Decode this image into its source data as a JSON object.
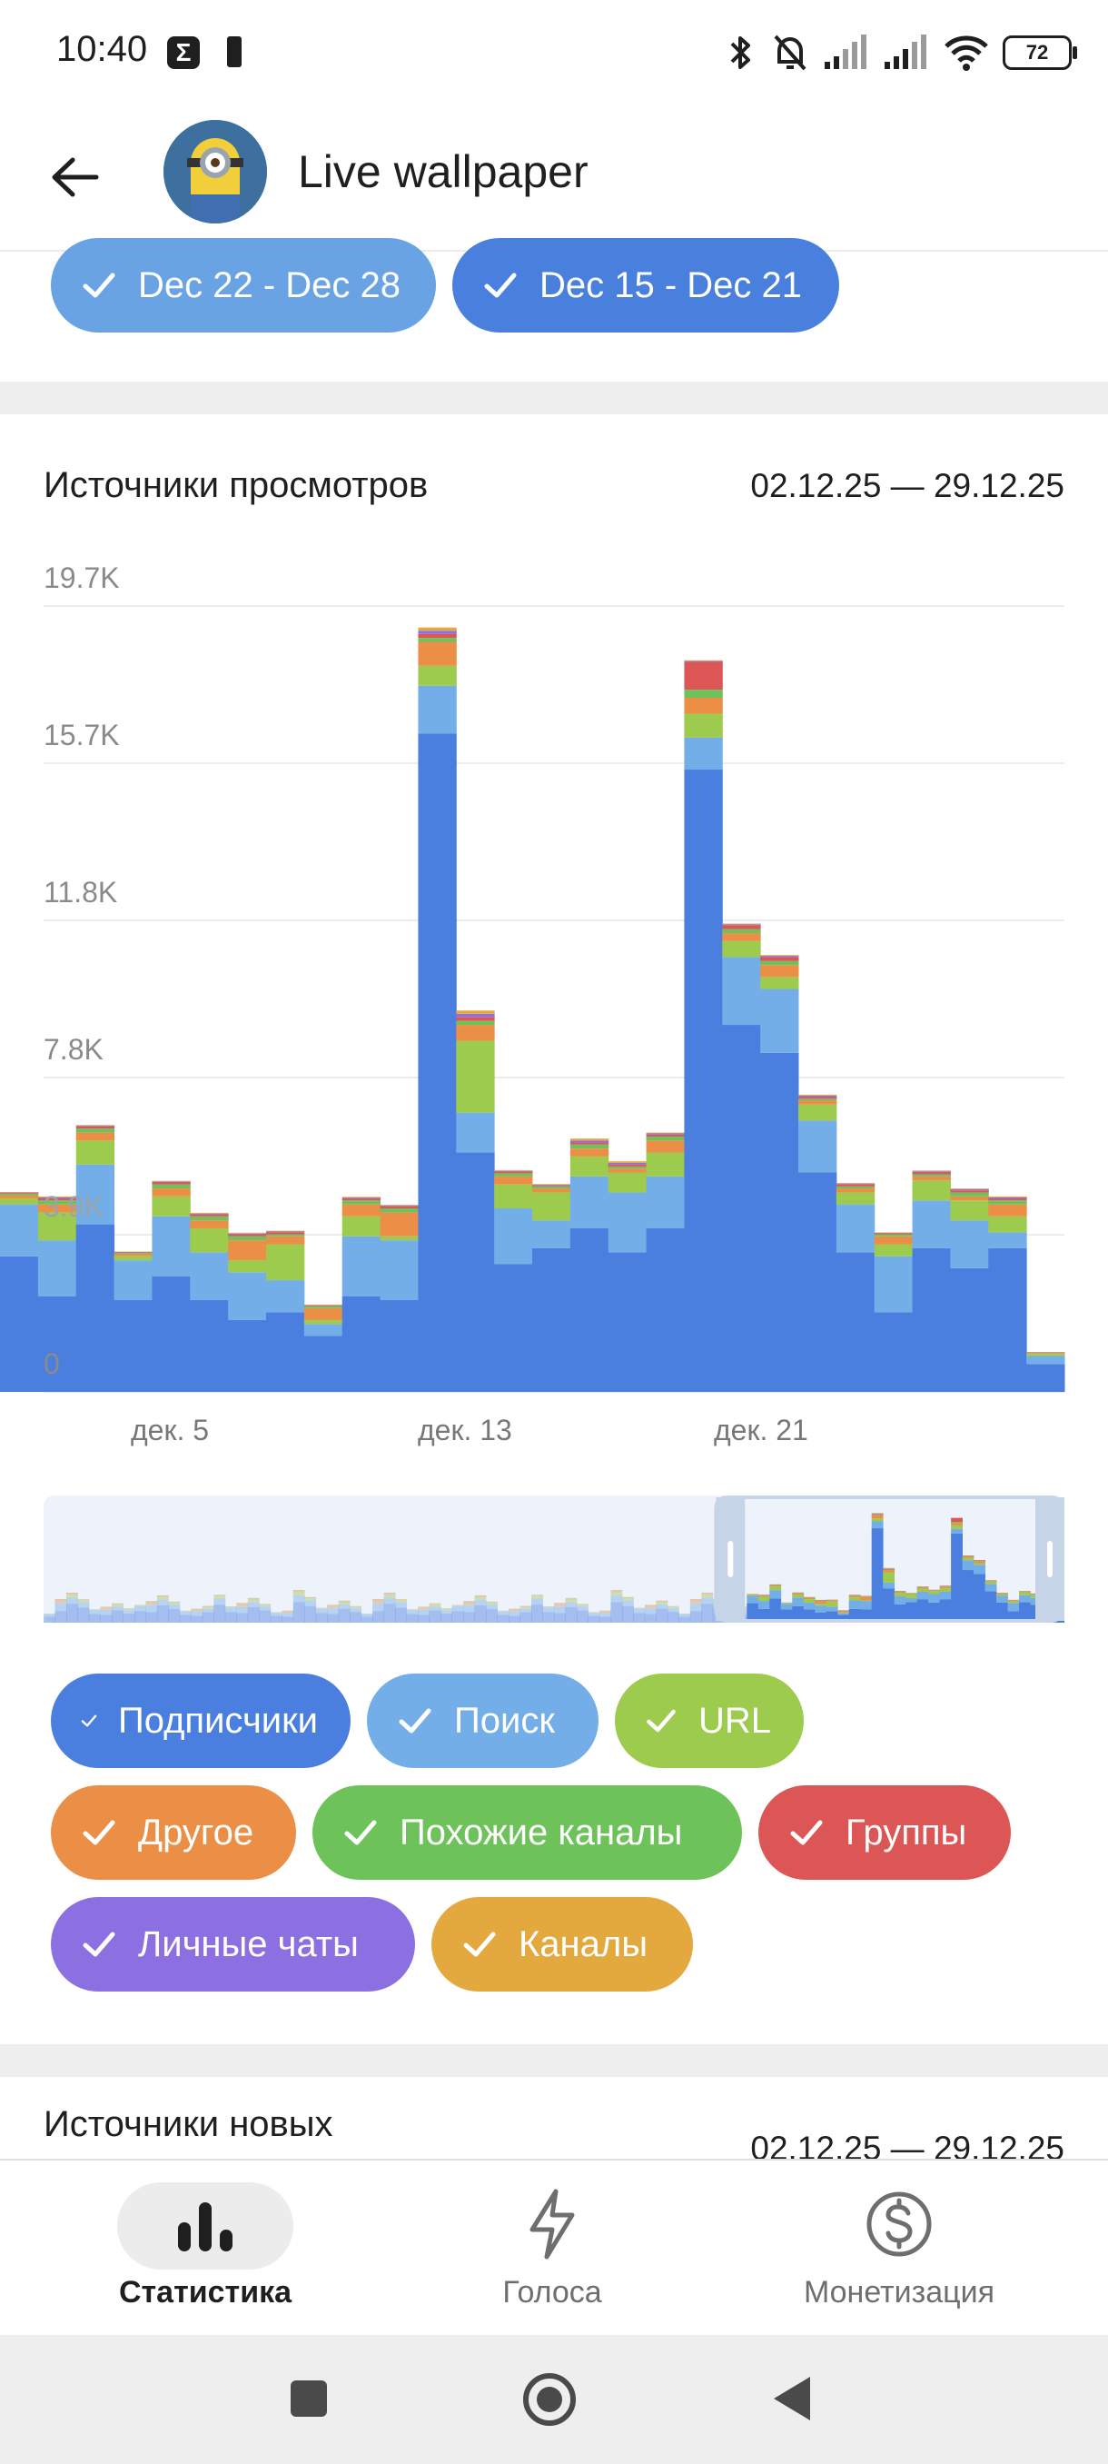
{
  "status": {
    "time": "10:40",
    "battery": "72"
  },
  "header": {
    "title": "Live wallpaper",
    "avatar_alt": "avatar"
  },
  "week_chips": [
    {
      "label": "Dec 22 - Dec 28",
      "color": "#69a3e4"
    },
    {
      "label": "Dec 15 - Dec 21",
      "color": "#4a80dd"
    }
  ],
  "views_section": {
    "title": "Источники просмотров",
    "date_range": "02.12.25 — 29.12.25"
  },
  "chart_data": {
    "type": "bar",
    "stacked": true,
    "y_ticks": [
      "19.7K",
      "15.7K",
      "11.8K",
      "7.8K",
      "3.9K",
      "0"
    ],
    "ylim": [
      0,
      19700
    ],
    "x_tick_labels": [
      "дек. 5",
      "дек. 13",
      "дек. 21"
    ],
    "series": [
      {
        "name": "Подписчики",
        "color": "#4a7fdf"
      },
      {
        "name": "Поиск",
        "color": "#74aee8"
      },
      {
        "name": "URL",
        "color": "#9dcb4d"
      },
      {
        "name": "Другое",
        "color": "#eb8f47"
      },
      {
        "name": "Похожие каналы",
        "color": "#6dc25a"
      },
      {
        "name": "Группы",
        "color": "#dd5656"
      },
      {
        "name": "Личные чаты",
        "color": "#8c6fe0"
      },
      {
        "name": "Каналы",
        "color": "#e3a93f"
      }
    ],
    "bars": [
      [
        3400,
        1300,
        150,
        80,
        40,
        20,
        10,
        10
      ],
      [
        2400,
        1400,
        700,
        200,
        100,
        50,
        30,
        20
      ],
      [
        4200,
        1500,
        600,
        200,
        100,
        50,
        20,
        20
      ],
      [
        2300,
        1000,
        100,
        50,
        30,
        20,
        10,
        10
      ],
      [
        2900,
        1500,
        500,
        200,
        100,
        50,
        20,
        20
      ],
      [
        2300,
        1200,
        600,
        200,
        100,
        50,
        20,
        20
      ],
      [
        1800,
        1200,
        300,
        500,
        100,
        50,
        20,
        20
      ],
      [
        2000,
        800,
        900,
        200,
        50,
        50,
        20,
        20
      ],
      [
        1400,
        300,
        100,
        300,
        50,
        20,
        10,
        10
      ],
      [
        2400,
        1500,
        500,
        300,
        100,
        50,
        20,
        20
      ],
      [
        2300,
        1500,
        100,
        600,
        100,
        50,
        20,
        20
      ],
      [
        16500,
        1200,
        500,
        600,
        100,
        100,
        80,
        80
      ],
      [
        6000,
        1000,
        1800,
        400,
        100,
        100,
        80,
        80
      ],
      [
        3200,
        1400,
        600,
        200,
        80,
        40,
        20,
        20
      ],
      [
        3600,
        700,
        700,
        100,
        50,
        20,
        20,
        20
      ],
      [
        4100,
        1300,
        500,
        200,
        100,
        50,
        50,
        50
      ],
      [
        3500,
        1500,
        500,
        100,
        50,
        50,
        40,
        40
      ],
      [
        4100,
        1300,
        600,
        300,
        100,
        50,
        30,
        20
      ],
      [
        15600,
        800,
        600,
        400,
        200,
        700,
        20,
        20
      ],
      [
        9200,
        1700,
        400,
        200,
        100,
        100,
        20,
        20
      ],
      [
        8500,
        1600,
        300,
        300,
        100,
        100,
        30,
        20
      ],
      [
        5500,
        1300,
        400,
        100,
        50,
        50,
        30,
        20
      ],
      [
        3500,
        1200,
        300,
        100,
        50,
        50,
        20,
        20
      ],
      [
        2000,
        1400,
        300,
        200,
        50,
        30,
        10,
        10
      ],
      [
        3600,
        1200,
        500,
        100,
        50,
        50,
        30,
        20
      ],
      [
        3100,
        1200,
        500,
        100,
        100,
        50,
        30,
        20
      ],
      [
        3600,
        400,
        400,
        300,
        100,
        50,
        30,
        20
      ],
      [
        700,
        200,
        50,
        20,
        10,
        10,
        5,
        5
      ]
    ]
  },
  "legend_chips": [
    {
      "label": "Подписчики",
      "color": "#4a7fdf"
    },
    {
      "label": "Поиск",
      "color": "#74aee8"
    },
    {
      "label": "URL",
      "color": "#9dcb4d"
    },
    {
      "label": "Другое",
      "color": "#eb8f47"
    },
    {
      "label": "Похожие каналы",
      "color": "#6dc25a"
    },
    {
      "label": "Группы",
      "color": "#dd5656"
    },
    {
      "label": "Личные чаты",
      "color": "#8c6fe0"
    },
    {
      "label": "Каналы",
      "color": "#e3a93f"
    }
  ],
  "new_sources_section": {
    "title": "Источники новых",
    "date_range": "02.12.25 — 29.12.25"
  },
  "bottom_nav": [
    {
      "label": "Статистика",
      "icon": "bar-chart-icon",
      "active": true
    },
    {
      "label": "Голоса",
      "icon": "lightning-icon",
      "active": false
    },
    {
      "label": "Монетизация",
      "icon": "dollar-icon",
      "active": false
    }
  ]
}
